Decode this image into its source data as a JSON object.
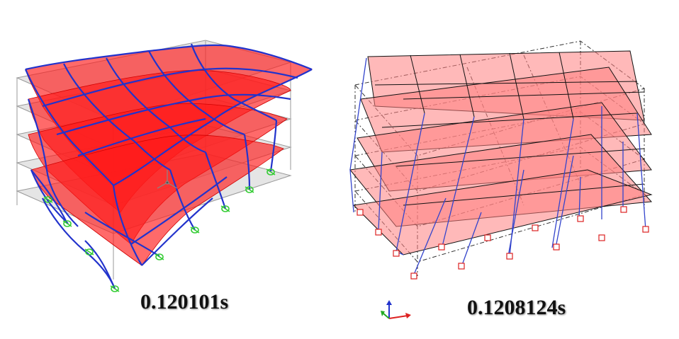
{
  "left_model": {
    "label": "0.120101s",
    "colors": {
      "slab": "#ff1a1a",
      "frame": "#2233cc",
      "undeformed": "#999999",
      "support": "#33cc33"
    }
  },
  "right_model": {
    "label": "0.1208124s",
    "colors": {
      "slab": "#ff8080",
      "frame": "#111111",
      "brace": "#3344cc",
      "dashed": "#333333",
      "support": "#dd2222"
    }
  },
  "axis_triad": {
    "x_color": "#dd2222",
    "y_color": "#22aa22",
    "z_color": "#2233cc"
  }
}
